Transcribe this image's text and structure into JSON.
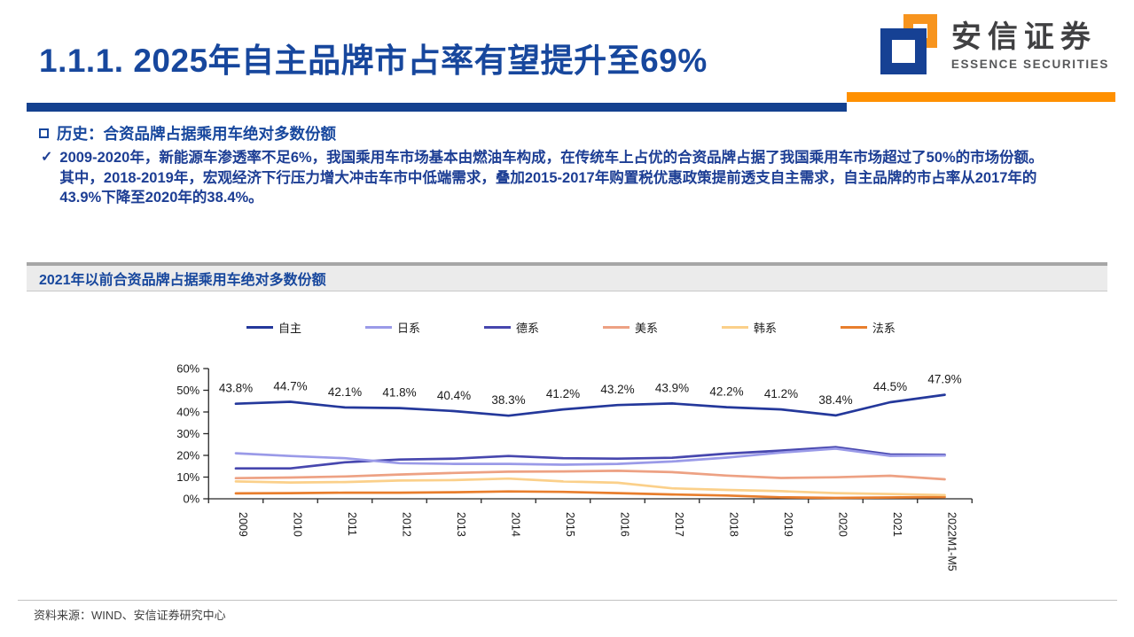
{
  "page": {
    "title": "1.1.1. 2025年自主品牌市占率有望提升至69%",
    "footer_source": "资料来源：WIND、安信证券研究中心"
  },
  "logo": {
    "name_cn": "安信证券",
    "name_en": "ESSENCE SECURITIES"
  },
  "section": {
    "bullet_marker": "square-outline",
    "heading": "历史：合资品牌占据乘用车绝对多数份额",
    "check_marker": "✓",
    "body": "2009-2020年，新能源车渗透率不足6%，我国乘用车市场基本由燃油车构成，在传统车上占优的合资品牌占据了我国乘用车市场超过了50%的市场份额。其中，2018-2019年，宏观经济下行压力增大冲击车市中低端需求，叠加2015-2017年购置税优惠政策提前透支自主需求，自主品牌的市占率从2017年的43.9%下降至2020年的38.4%。"
  },
  "chart_header": "2021年以前合资品牌占据乘用车绝对多数份额",
  "chart_data": {
    "type": "line",
    "title": "2021年以前合资品牌占据乘用车绝对多数份额",
    "xlabel": "",
    "ylabel": "",
    "ylim": [
      0,
      60
    ],
    "ytick_step": 10,
    "ytick_suffix": "%",
    "grid": false,
    "legend_position": "top",
    "categories": [
      "2009",
      "2010",
      "2011",
      "2012",
      "2013",
      "2014",
      "2015",
      "2016",
      "2017",
      "2018",
      "2019",
      "2020",
      "2021",
      "2022M1-M5"
    ],
    "series": [
      {
        "name": "自主",
        "color": "#24389B",
        "labeled": true,
        "values": [
          43.8,
          44.7,
          42.1,
          41.8,
          40.4,
          38.3,
          41.2,
          43.2,
          43.9,
          42.2,
          41.2,
          38.4,
          44.5,
          47.9
        ]
      },
      {
        "name": "日系",
        "color": "#9A9AE8",
        "labeled": false,
        "values": [
          21.0,
          19.7,
          18.7,
          16.4,
          16.1,
          16.1,
          15.7,
          16.1,
          17.2,
          19.0,
          21.3,
          23.1,
          19.8,
          19.9
        ]
      },
      {
        "name": "德系",
        "color": "#4747AE",
        "labeled": false,
        "values": [
          14.0,
          14.0,
          16.8,
          18.1,
          18.5,
          19.7,
          18.7,
          18.5,
          18.9,
          20.8,
          22.2,
          23.8,
          20.4,
          20.3
        ]
      },
      {
        "name": "美系",
        "color": "#EDA183",
        "labeled": false,
        "values": [
          9.5,
          9.8,
          10.3,
          11.2,
          11.9,
          12.5,
          12.6,
          12.9,
          12.3,
          10.7,
          9.6,
          9.9,
          10.6,
          9.0
        ]
      },
      {
        "name": "韩系",
        "color": "#FBD08A",
        "labeled": false,
        "values": [
          8.0,
          7.5,
          7.7,
          8.4,
          8.6,
          9.3,
          8.0,
          7.4,
          4.8,
          4.1,
          3.5,
          2.6,
          2.2,
          1.7
        ]
      },
      {
        "name": "法系",
        "color": "#E87E2D",
        "labeled": false,
        "values": [
          2.5,
          2.6,
          2.8,
          2.8,
          3.0,
          3.4,
          3.2,
          2.6,
          2.0,
          1.5,
          0.7,
          0.4,
          0.6,
          0.8
        ]
      }
    ]
  },
  "colors": {
    "title_navy": "#17479D",
    "body_navy": "#1D3E94",
    "bar_navy": "#14418F",
    "bar_orange": "#FF9000",
    "logo_blue": "#164194",
    "logo_orange": "#F7941E",
    "band_gray": "#EBEBEB",
    "axis": "#262626"
  }
}
